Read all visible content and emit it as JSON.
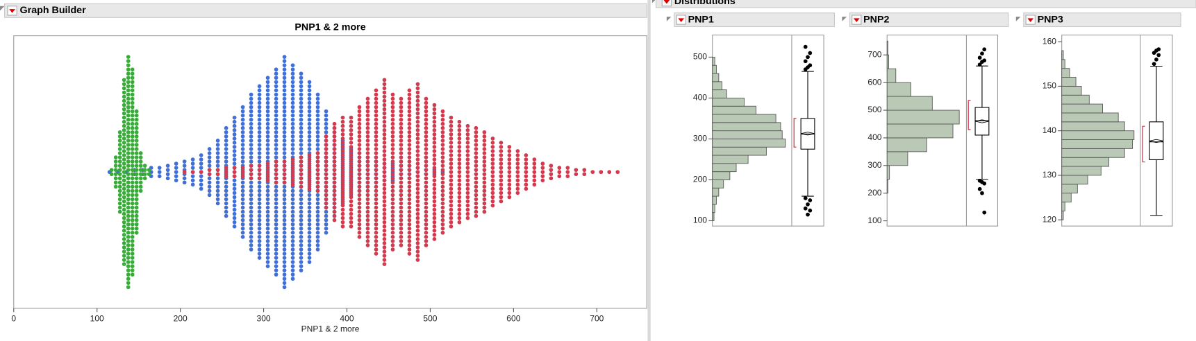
{
  "window": {
    "left_title": "Graph Builder",
    "right_title": "Distributions"
  },
  "chart_data": [
    {
      "type": "swarm",
      "title": "PNP1 & 2 more",
      "x_label": "PNP1 & 2 more",
      "xlim": [
        0,
        760
      ],
      "xticks": [
        0,
        100,
        200,
        300,
        400,
        500,
        600,
        700
      ],
      "series": [
        {
          "color": "#3f6fd8",
          "bins": [
            110,
            120,
            130,
            140,
            150,
            160,
            170,
            180,
            190,
            200,
            210,
            220,
            230,
            240,
            250,
            260,
            270,
            280,
            290,
            300,
            310,
            320,
            330,
            340,
            350,
            360,
            370,
            380,
            390,
            400,
            410,
            420,
            430,
            440,
            450,
            460,
            470,
            480,
            490,
            500,
            510,
            520
          ],
          "counts": [
            1,
            1,
            1,
            2,
            2,
            3,
            3,
            4,
            5,
            6,
            7,
            9,
            12,
            16,
            22,
            27,
            32,
            38,
            42,
            46,
            50,
            56,
            52,
            48,
            44,
            38,
            30,
            22,
            16,
            12,
            10,
            8,
            6,
            5,
            5,
            4,
            4,
            3,
            2,
            2,
            1
          ]
        },
        {
          "color": "#d6384e",
          "bins": [
            200,
            210,
            220,
            230,
            240,
            250,
            260,
            270,
            280,
            290,
            300,
            310,
            320,
            330,
            340,
            350,
            360,
            370,
            380,
            390,
            400,
            410,
            420,
            430,
            440,
            450,
            460,
            470,
            480,
            490,
            500,
            510,
            520,
            530,
            540,
            550,
            560,
            570,
            580,
            590,
            600,
            610,
            620,
            630,
            640,
            650,
            660,
            670,
            680,
            690,
            700,
            710,
            720,
            730
          ],
          "counts": [
            1,
            1,
            1,
            2,
            2,
            3,
            3,
            3,
            4,
            4,
            5,
            6,
            6,
            7,
            8,
            9,
            10,
            18,
            24,
            27,
            27,
            32,
            36,
            40,
            45,
            38,
            36,
            40,
            43,
            36,
            33,
            30,
            27,
            25,
            23,
            22,
            20,
            17,
            15,
            13,
            11,
            9,
            7,
            5,
            4,
            3,
            3,
            2,
            2,
            1,
            1,
            1,
            1
          ]
        },
        {
          "color": "#3aaa3a",
          "bins": [
            115,
            120,
            125,
            130,
            135,
            140,
            145,
            150,
            155,
            160,
            165
          ],
          "counts": [
            2,
            8,
            20,
            45,
            56,
            50,
            30,
            10,
            4,
            2
          ]
        }
      ]
    },
    {
      "type": "distribution",
      "title": "PNP1",
      "ylim": [
        87,
        554
      ],
      "yticks": [
        100,
        200,
        300,
        400,
        500
      ],
      "xlim": [
        0,
        100
      ],
      "color": "#b9c9b5",
      "bins": [
        100,
        120,
        140,
        160,
        180,
        200,
        220,
        240,
        260,
        280,
        300,
        320,
        340,
        360,
        380,
        400,
        420,
        440,
        460,
        480,
        500
      ],
      "counts": [
        2,
        3,
        5,
        8,
        14,
        22,
        30,
        45,
        68,
        92,
        88,
        86,
        80,
        55,
        40,
        18,
        12,
        8,
        5,
        3
      ],
      "box": {
        "min": 160,
        "q1": 275,
        "median": 312,
        "q3": 350,
        "max": 465
      },
      "mean": 313,
      "shortest_half": [
        280,
        350
      ],
      "outliers": [
        470,
        475,
        480,
        490,
        500,
        510,
        525,
        115,
        125,
        130,
        140,
        150,
        155
      ]
    },
    {
      "type": "distribution",
      "title": "PNP2",
      "ylim": [
        81,
        772
      ],
      "yticks": [
        100,
        200,
        300,
        400,
        500,
        600,
        700
      ],
      "xlim": [
        0,
        100
      ],
      "color": "#b9c9b5",
      "bins": [
        200,
        250,
        300,
        350,
        400,
        450,
        500,
        550,
        600,
        650,
        700,
        750
      ],
      "counts": [
        1,
        3,
        26,
        50,
        83,
        91,
        57,
        30,
        11,
        2,
        1
      ],
      "box": {
        "min": 250,
        "q1": 410,
        "median": 462,
        "q3": 510,
        "max": 660
      },
      "mean": 460,
      "shortest_half": [
        430,
        535
      ],
      "outliers": [
        665,
        675,
        680,
        690,
        705,
        720,
        245,
        240,
        235,
        215,
        200,
        130
      ]
    },
    {
      "type": "distribution",
      "title": "PNP3",
      "ylim": [
        118.6,
        161.5
      ],
      "yticks": [
        120,
        130,
        140,
        150,
        160
      ],
      "xlim": [
        0,
        100
      ],
      "color": "#b9c9b5",
      "bins": [
        120,
        122,
        124,
        126,
        128,
        130,
        132,
        134,
        136,
        138,
        140,
        142,
        144,
        146,
        148,
        150,
        152,
        154,
        156,
        158
      ],
      "counts": [
        2,
        4,
        12,
        20,
        33,
        50,
        60,
        80,
        90,
        92,
        80,
        72,
        52,
        35,
        25,
        18,
        10,
        4,
        2
      ],
      "box": {
        "min": 121,
        "q1": 133.5,
        "median": 137.5,
        "q3": 142,
        "max": 154.5
      },
      "mean": 137.7,
      "shortest_half": [
        133,
        141
      ],
      "outliers": [
        155,
        156,
        157,
        157.5,
        158,
        158.3
      ]
    }
  ]
}
